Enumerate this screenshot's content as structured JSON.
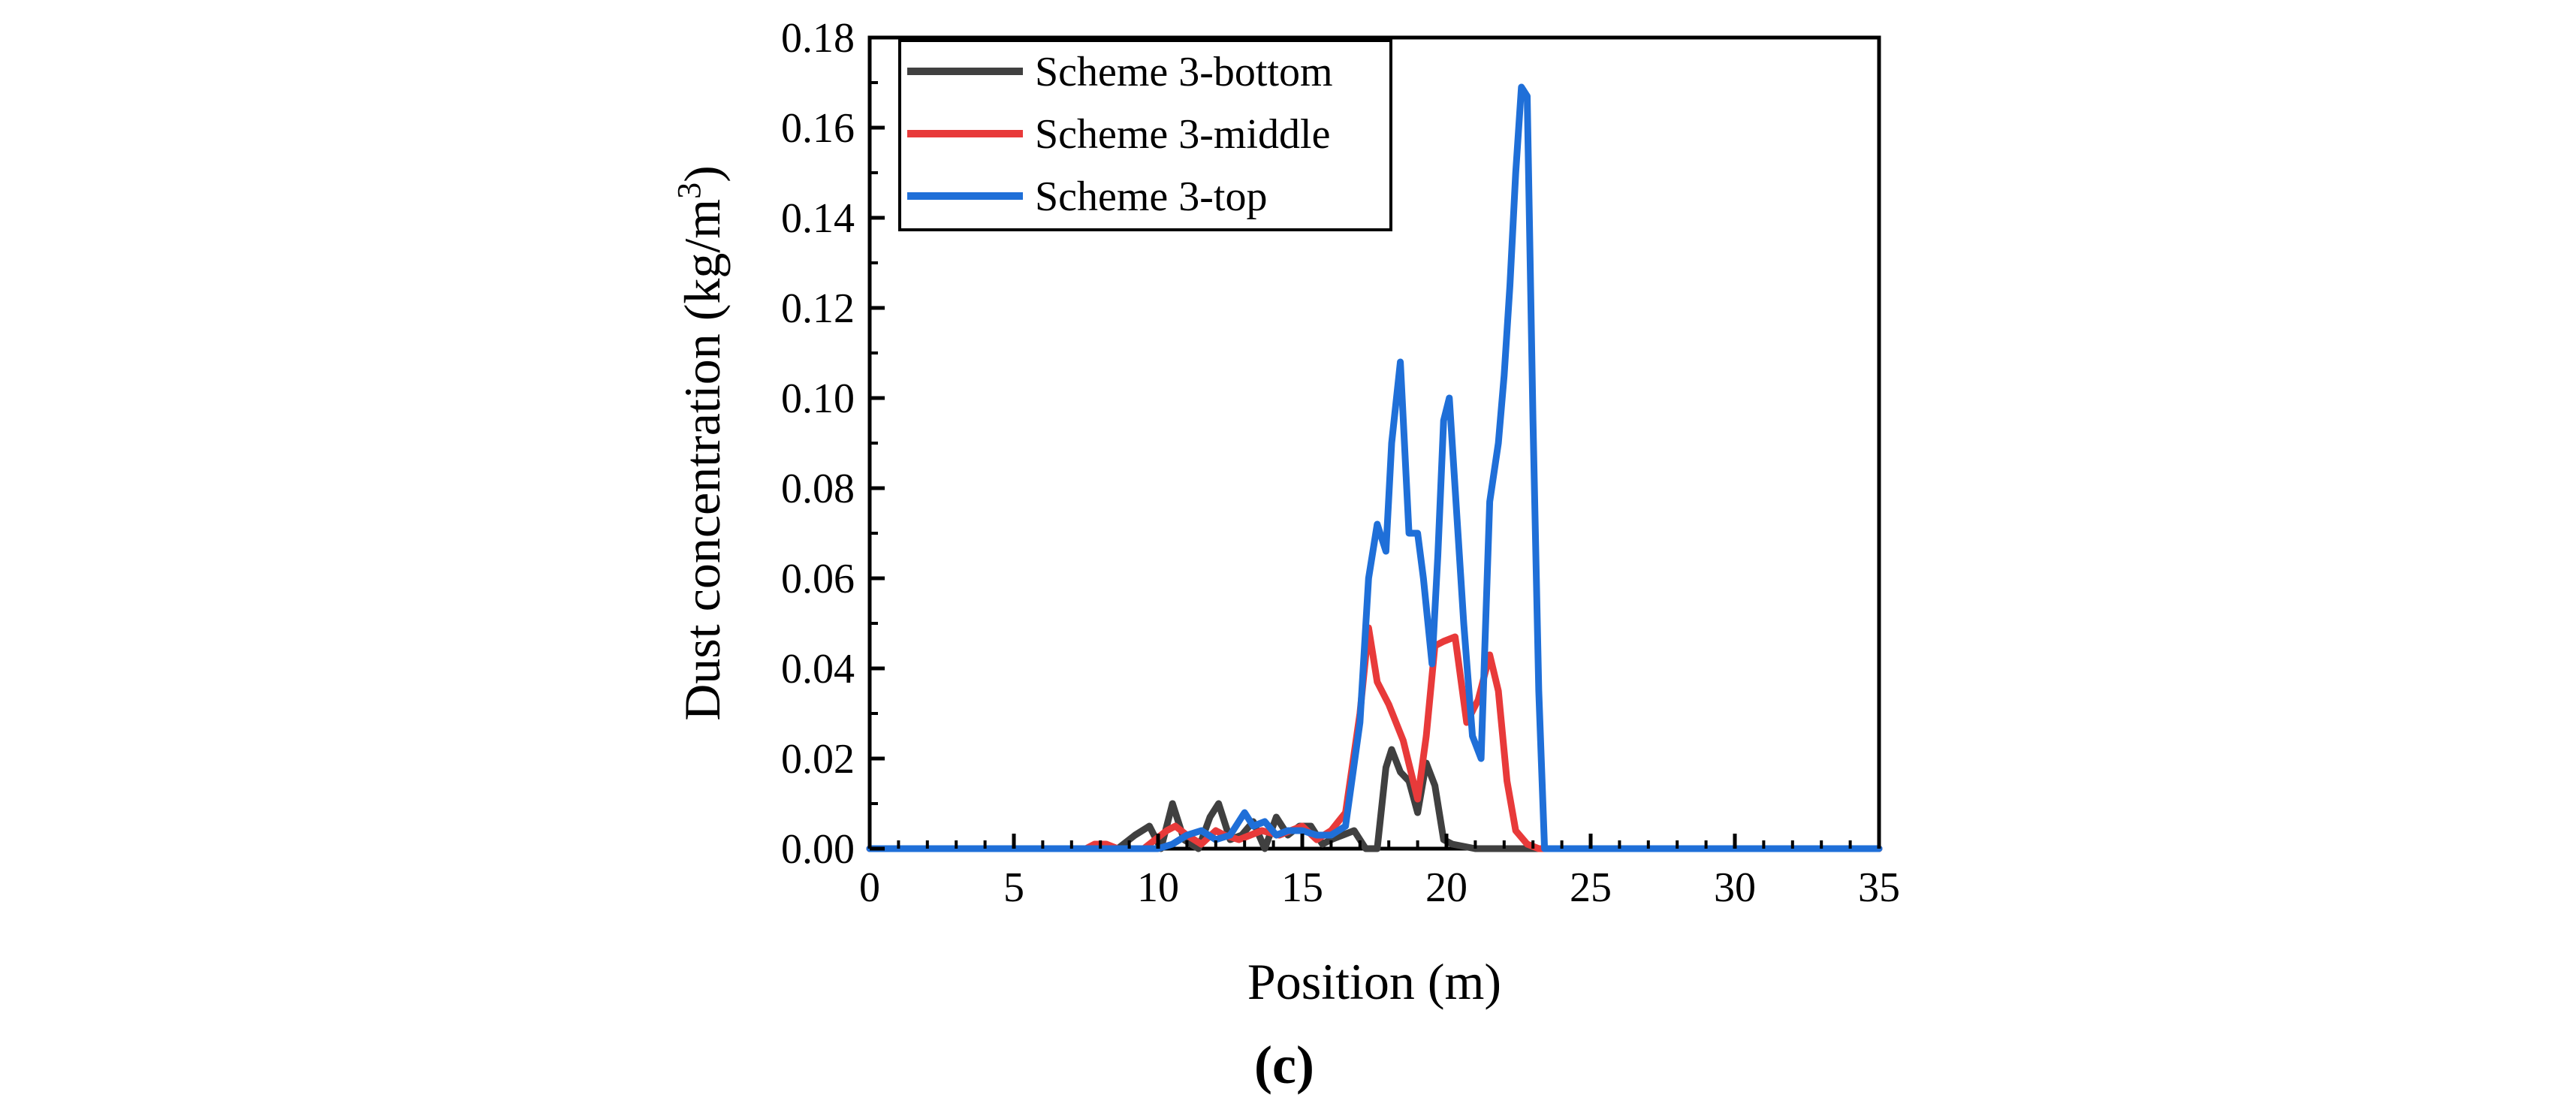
{
  "chart_data": {
    "type": "line",
    "panel_label": "(c)",
    "xlabel": "Position (m)",
    "ylabel": "Dust concentration (kg/m3)",
    "ylabel_parts": {
      "main": "Dust concentration (kg/m",
      "sup": "3",
      "close": ")"
    },
    "xlim": [
      0,
      35
    ],
    "ylim": [
      0,
      0.18
    ],
    "xticks": [
      0,
      5,
      10,
      15,
      20,
      25,
      30,
      35
    ],
    "xtick_labels": [
      "0",
      "5",
      "10",
      "15",
      "20",
      "25",
      "30",
      "35"
    ],
    "yticks": [
      0,
      0.02,
      0.04,
      0.06,
      0.08,
      0.1,
      0.12,
      0.14,
      0.16,
      0.18
    ],
    "ytick_labels": [
      "0.00",
      "0.02",
      "0.04",
      "0.06",
      "0.08",
      "0.10",
      "0.12",
      "0.14",
      "0.16",
      "0.18"
    ],
    "grid": false,
    "legend_position": "top-left",
    "series": [
      {
        "name": "Scheme 3-bottom",
        "color": "#404040",
        "x": [
          0,
          5,
          8,
          8.6,
          9.2,
          9.7,
          10.1,
          10.5,
          10.9,
          11.4,
          11.8,
          12.1,
          12.5,
          12.9,
          13.3,
          13.7,
          14.1,
          14.5,
          14.9,
          15.3,
          15.7,
          16,
          16.4,
          16.8,
          17.2,
          17.6,
          17.9,
          18.1,
          18.4,
          18.7,
          19,
          19.3,
          19.6,
          19.9,
          20.2,
          21,
          22,
          23,
          25,
          35
        ],
        "y": [
          0,
          0,
          0,
          0,
          0.003,
          0.005,
          0,
          0.01,
          0.002,
          0,
          0.007,
          0.01,
          0.002,
          0.003,
          0.006,
          0,
          0.007,
          0.003,
          0.005,
          0.005,
          0.001,
          0.002,
          0.003,
          0.004,
          0,
          0,
          0.018,
          0.022,
          0.017,
          0.015,
          0.008,
          0.019,
          0.014,
          0.002,
          0.001,
          0,
          0,
          0,
          0,
          0
        ]
      },
      {
        "name": "Scheme 3-middle",
        "color": "#e83a3a",
        "x": [
          0,
          5,
          7.5,
          7.8,
          8.2,
          8.6,
          9.5,
          10.3,
          10.6,
          11,
          11.5,
          12,
          12.3,
          12.8,
          13.2,
          13.6,
          14.2,
          14.6,
          15,
          15.5,
          16,
          16.5,
          17,
          17.3,
          17.6,
          18,
          18.5,
          19,
          19.3,
          19.6,
          19.9,
          20.3,
          20.7,
          21.1,
          21.5,
          21.8,
          22.1,
          22.4,
          22.8,
          23.2,
          25,
          35
        ],
        "y": [
          0,
          0,
          0,
          0.001,
          0.001,
          0,
          0,
          0.004,
          0.005,
          0.003,
          0.001,
          0.004,
          0.003,
          0.002,
          0.003,
          0.004,
          0.003,
          0.004,
          0.005,
          0.002,
          0.004,
          0.008,
          0.03,
          0.049,
          0.037,
          0.032,
          0.024,
          0.011,
          0.025,
          0.045,
          0.046,
          0.047,
          0.028,
          0.033,
          0.043,
          0.035,
          0.015,
          0.004,
          0.001,
          0,
          0,
          0
        ]
      },
      {
        "name": "Scheme 3-top",
        "color": "#1f6fd8",
        "x": [
          0,
          5,
          10,
          10.5,
          11,
          11.5,
          12,
          12.5,
          13,
          13.3,
          13.7,
          14.1,
          14.5,
          15,
          15.5,
          16,
          16.5,
          17,
          17.3,
          17.6,
          17.9,
          18.1,
          18.4,
          18.7,
          19,
          19.2,
          19.5,
          19.7,
          19.9,
          20.1,
          20.3,
          20.6,
          20.9,
          21.2,
          21.5,
          21.8,
          22,
          22.2,
          22.4,
          22.6,
          22.8,
          23,
          23.2,
          23.4,
          25,
          35
        ],
        "y": [
          0,
          0,
          0,
          0.001,
          0.003,
          0.004,
          0.002,
          0.003,
          0.008,
          0.005,
          0.006,
          0.003,
          0.004,
          0.004,
          0.003,
          0.003,
          0.005,
          0.028,
          0.06,
          0.072,
          0.066,
          0.09,
          0.108,
          0.07,
          0.07,
          0.06,
          0.041,
          0.065,
          0.095,
          0.1,
          0.08,
          0.05,
          0.025,
          0.02,
          0.077,
          0.09,
          0.105,
          0.125,
          0.15,
          0.169,
          0.167,
          0.095,
          0.035,
          0,
          0,
          0
        ]
      }
    ]
  }
}
